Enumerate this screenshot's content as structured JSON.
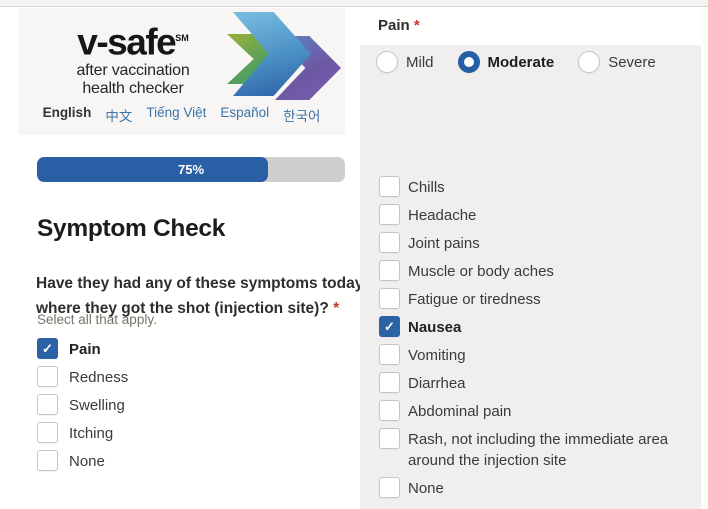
{
  "colors": {
    "accent_blue": "#2b5fa5",
    "link_blue": "#3d74a6",
    "required_red": "#c9352b",
    "panel_gray": "#f0efed",
    "logo_panel_gray": "#f7f6f5"
  },
  "logo": {
    "brand": "v-safe",
    "trademark": "SM",
    "tagline_line1": "after vaccination",
    "tagline_line2": "health checker",
    "chevron_colors": [
      "#6ca04a",
      "#4a8fc4",
      "#6d57a3"
    ]
  },
  "languages": [
    {
      "label": "English",
      "active": true
    },
    {
      "label": "中文",
      "active": false
    },
    {
      "label": "Tiếng Việt",
      "active": false
    },
    {
      "label": "Español",
      "active": false
    },
    {
      "label": "한국어",
      "active": false
    }
  ],
  "progress": {
    "percent": 75,
    "label": "75%"
  },
  "symptom_check": {
    "title": "Symptom Check",
    "question_line1": "Have they had any of these symptoms today",
    "question_line2": "where they got the shot (injection site)?",
    "required_marker": "*",
    "hint": "Select all that apply.",
    "options": [
      {
        "label": "Pain",
        "checked": true
      },
      {
        "label": "Redness",
        "checked": false
      },
      {
        "label": "Swelling",
        "checked": false
      },
      {
        "label": "Itching",
        "checked": false
      },
      {
        "label": "None",
        "checked": false
      }
    ]
  },
  "pain_detail": {
    "label": "Pain",
    "required_marker": "*",
    "levels": [
      {
        "label": "Mild",
        "selected": false
      },
      {
        "label": "Moderate",
        "selected": true
      },
      {
        "label": "Severe",
        "selected": false
      }
    ],
    "symptoms": [
      {
        "label": "Chills",
        "checked": false
      },
      {
        "label": "Headache",
        "checked": false
      },
      {
        "label": "Joint pains",
        "checked": false
      },
      {
        "label": "Muscle or body aches",
        "checked": false
      },
      {
        "label": "Fatigue or tiredness",
        "checked": false
      },
      {
        "label": "Nausea",
        "checked": true
      },
      {
        "label": "Vomiting",
        "checked": false
      },
      {
        "label": "Diarrhea",
        "checked": false
      },
      {
        "label": "Abdominal pain",
        "checked": false
      },
      {
        "label": "Rash, not including the immediate area",
        "label_line2": "around the injection site",
        "checked": false
      },
      {
        "label": "None",
        "checked": false
      }
    ]
  }
}
